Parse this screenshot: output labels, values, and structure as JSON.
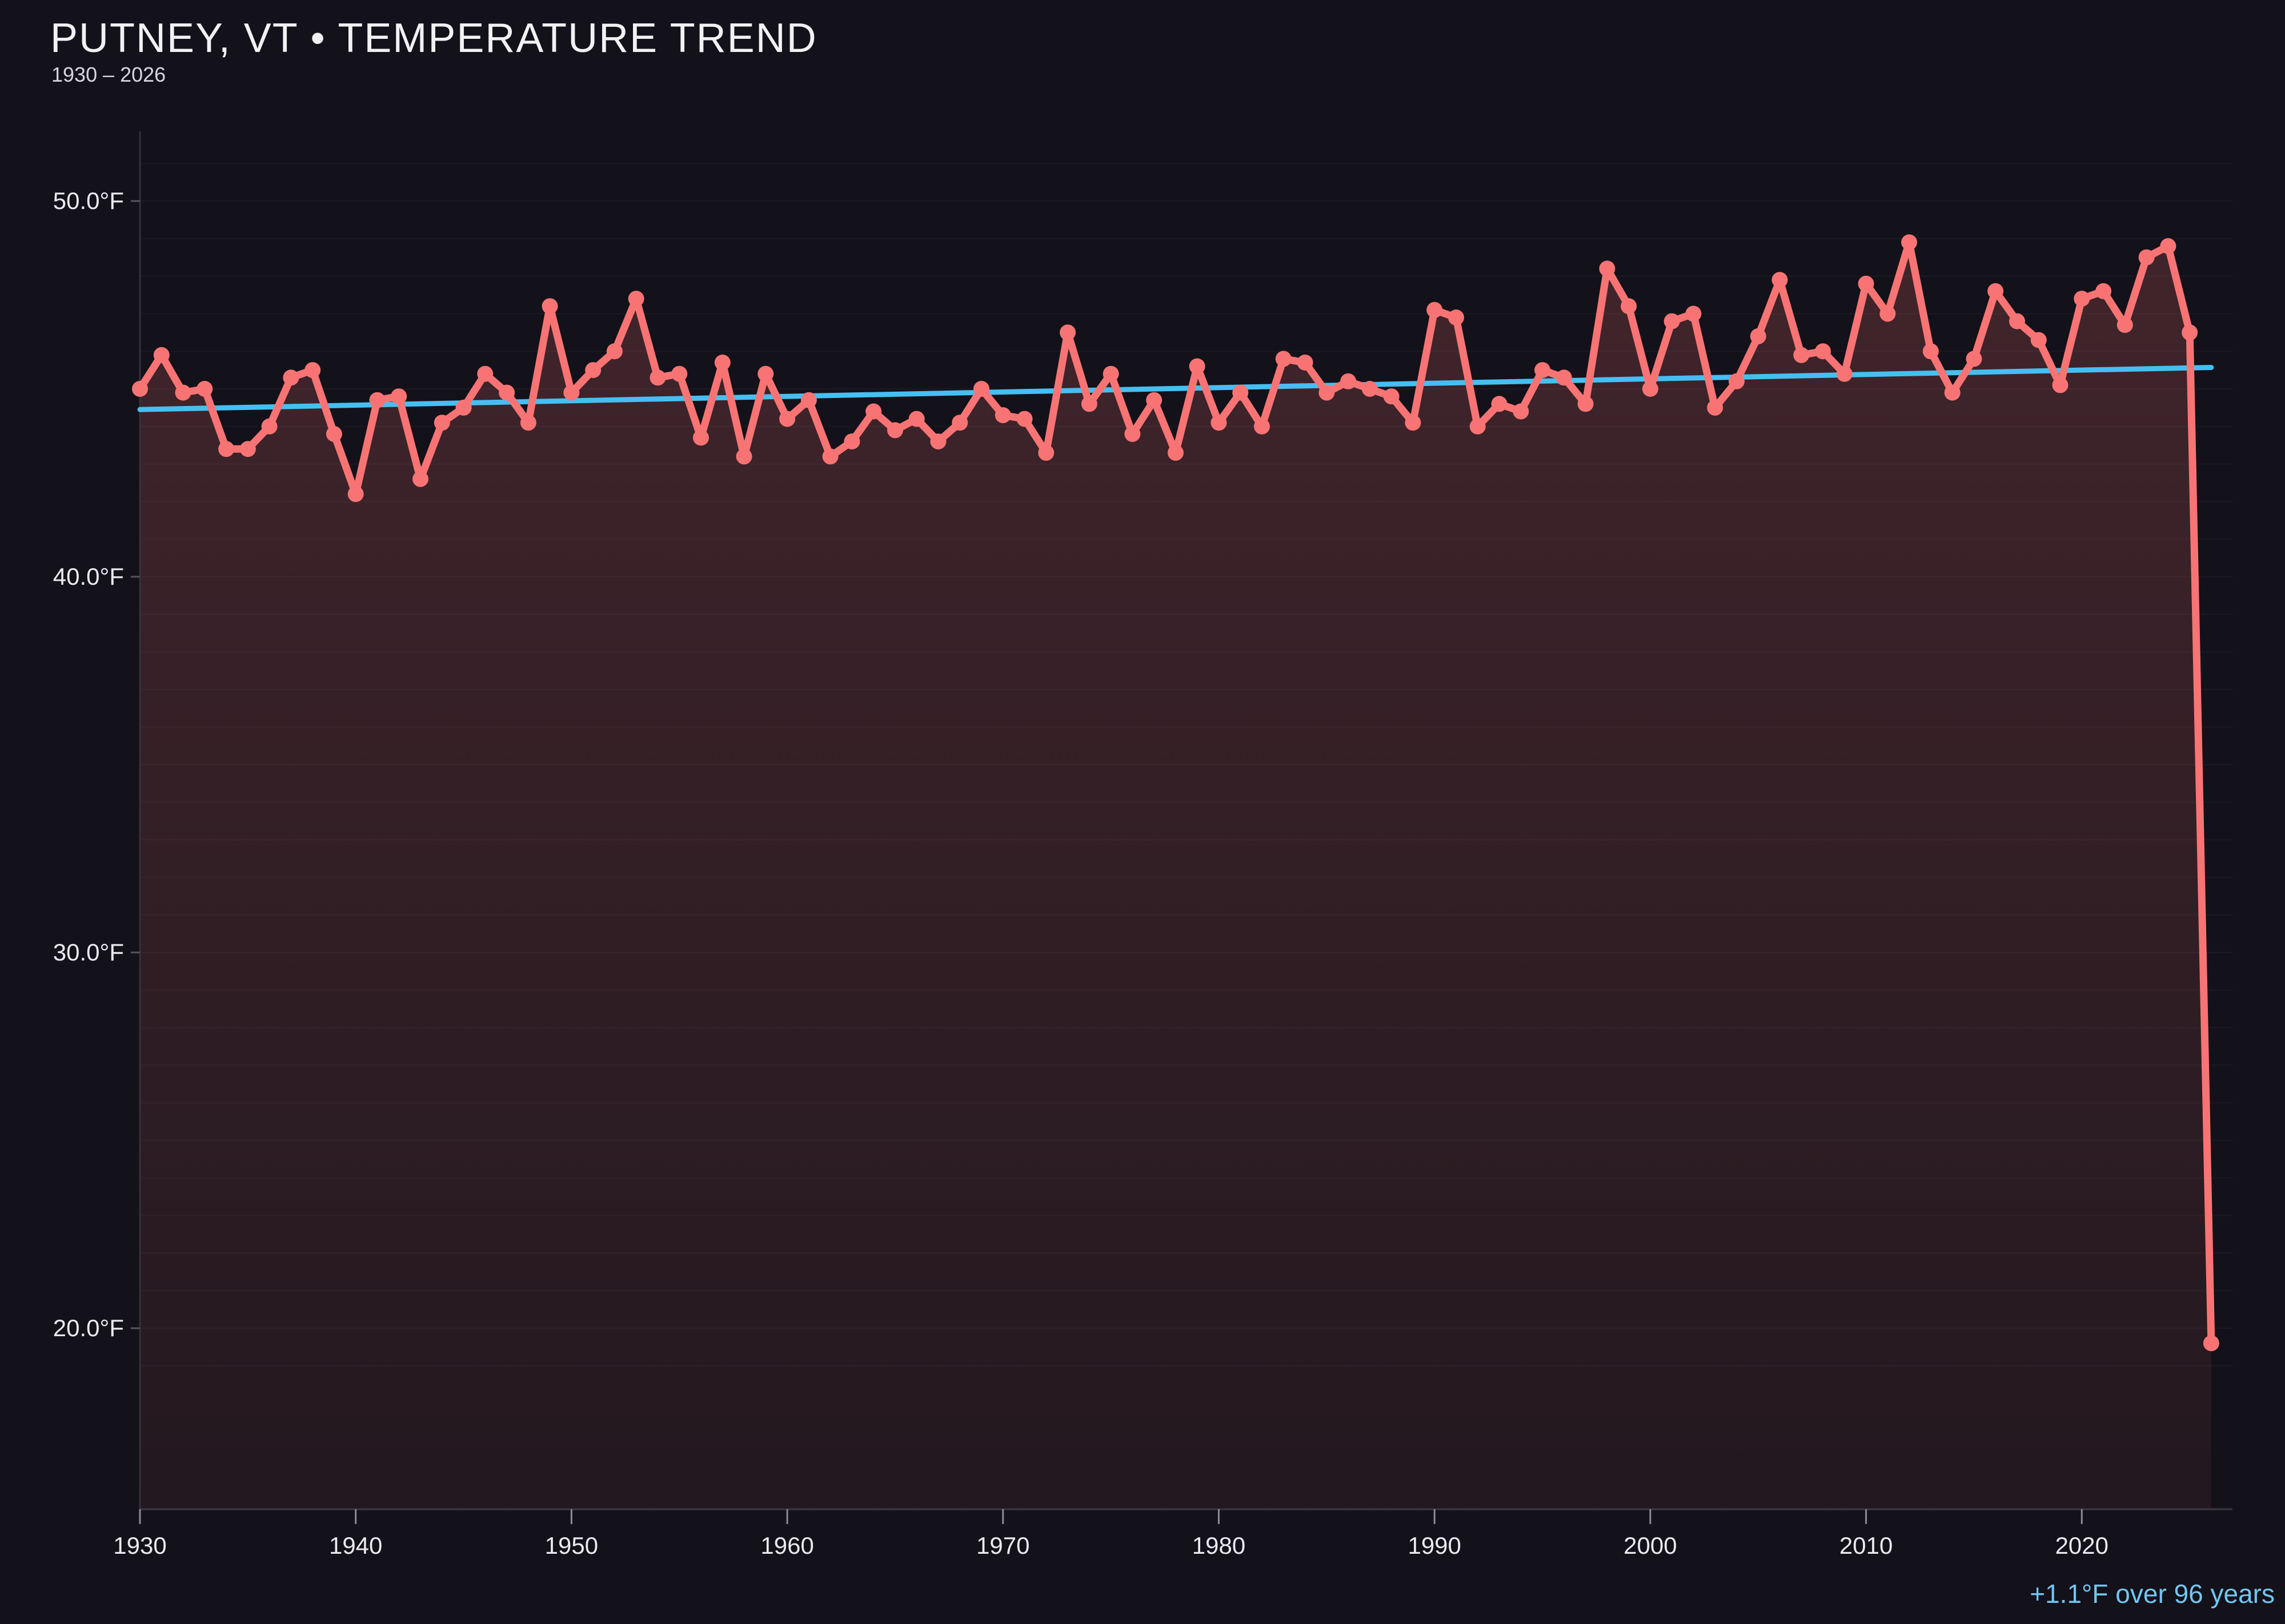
{
  "header": {
    "title": "PUTNEY, VT • TEMPERATURE TREND",
    "subtitle": "1930 – 2026"
  },
  "annotation": {
    "text": "+1.1°F over 96 years"
  },
  "colors": {
    "background": "#131119",
    "line": "#f87474",
    "point": "#f87474",
    "trend": "#45bff2",
    "annotation_text": "#72c6f2",
    "axis_text": "#eceaee",
    "spine": "#34313d",
    "tick": "#8d8b94",
    "grid": "rgba(255,255,255,0.035)",
    "fill_top": "rgba(249,115,115,0.20)",
    "fill_bottom": "rgba(249,115,115,0.07)"
  },
  "chart_data": {
    "type": "line",
    "title": "PUTNEY, VT • TEMPERATURE TREND",
    "subtitle": "1930 – 2026",
    "xlabel": "",
    "ylabel": "",
    "start_year": 1930,
    "end_year": 2026,
    "values": [
      45.0,
      45.9,
      44.9,
      45.0,
      43.4,
      43.4,
      44.0,
      45.3,
      45.5,
      43.8,
      42.2,
      44.7,
      44.8,
      42.6,
      44.1,
      44.5,
      45.4,
      44.9,
      44.1,
      47.2,
      44.9,
      45.5,
      46.0,
      47.4,
      45.3,
      45.4,
      43.7,
      45.7,
      43.2,
      45.4,
      44.2,
      44.7,
      43.2,
      43.6,
      44.4,
      43.9,
      44.2,
      43.6,
      44.1,
      45.0,
      44.3,
      44.2,
      43.3,
      46.5,
      44.6,
      45.4,
      43.8,
      44.7,
      43.3,
      45.6,
      44.1,
      44.9,
      44.0,
      45.8,
      45.7,
      44.9,
      45.2,
      45.0,
      44.8,
      44.1,
      47.1,
      46.9,
      44.0,
      44.6,
      44.4,
      45.5,
      45.3,
      44.6,
      48.2,
      47.2,
      45.0,
      46.8,
      47.0,
      44.5,
      45.2,
      46.4,
      47.9,
      45.9,
      46.0,
      45.4,
      47.8,
      47.0,
      48.9,
      46.0,
      44.9,
      45.8,
      47.6,
      46.8,
      46.3,
      45.1,
      47.4,
      47.6,
      46.7,
      48.5,
      48.8,
      46.5,
      19.6
    ],
    "unit": "°F",
    "trend": {
      "start_year": 1930,
      "end_year": 2026,
      "start_value": 44.45,
      "end_value": 45.57,
      "label": "+1.1°F over 96 years"
    },
    "y_ticks": [
      {
        "value": 50,
        "label": "50.0°F"
      },
      {
        "value": 40,
        "label": "40.0°F"
      },
      {
        "value": 30,
        "label": "30.0°F"
      },
      {
        "value": 20,
        "label": "20.0°F"
      }
    ],
    "x_ticks": [
      {
        "value": 1930,
        "label": "1930"
      },
      {
        "value": 1940,
        "label": "1940"
      },
      {
        "value": 1950,
        "label": "1950"
      },
      {
        "value": 1960,
        "label": "1960"
      },
      {
        "value": 1970,
        "label": "1970"
      },
      {
        "value": 1980,
        "label": "1980"
      },
      {
        "value": 1990,
        "label": "1990"
      },
      {
        "value": 2000,
        "label": "2000"
      },
      {
        "value": 2010,
        "label": "2010"
      },
      {
        "value": 2020,
        "label": "2020"
      }
    ],
    "ylim": [
      14.5,
      51.8
    ],
    "grid": "horizontal-minor-1F",
    "legend": "none"
  }
}
